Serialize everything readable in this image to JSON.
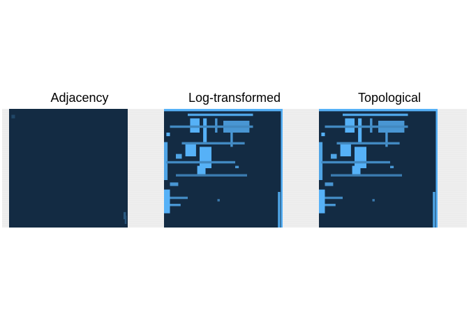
{
  "chart_data": [
    {
      "type": "heatmap",
      "title": "Adjacency",
      "low_color": "#132B43",
      "high_color": "#56B1F7",
      "grid": true,
      "legend": "none",
      "highlights": [
        {
          "r0": 0.87,
          "r1": 0.93,
          "c0": 0.965,
          "c1": 0.985,
          "v": 0.35
        },
        {
          "r0": 0.9,
          "r1": 0.97,
          "c0": 0.975,
          "c1": 0.99,
          "v": 0.3
        },
        {
          "r0": 0.05,
          "r1": 0.08,
          "c0": 0.02,
          "c1": 0.05,
          "v": 0.2
        }
      ]
    },
    {
      "type": "heatmap",
      "title": "Log-transformed",
      "low_color": "#132B43",
      "high_color": "#56B1F7",
      "grid": true,
      "legend": "none",
      "highlights": [
        {
          "r0": 0.0,
          "r1": 0.02,
          "c0": 0.0,
          "c1": 1.0,
          "v": 1
        },
        {
          "r0": 0.0,
          "r1": 1.0,
          "c0": 0.985,
          "c1": 1.0,
          "v": 1
        },
        {
          "r0": 0.04,
          "r1": 0.06,
          "c0": 0.2,
          "c1": 0.75,
          "v": 0.9
        },
        {
          "r0": 0.08,
          "r1": 0.2,
          "c0": 0.22,
          "c1": 0.3,
          "v": 1
        },
        {
          "r0": 0.08,
          "r1": 0.28,
          "c0": 0.33,
          "c1": 0.36,
          "v": 1
        },
        {
          "r0": 0.08,
          "r1": 0.2,
          "c0": 0.43,
          "c1": 0.45,
          "v": 0.8
        },
        {
          "r0": 0.1,
          "r1": 0.2,
          "c0": 0.5,
          "c1": 0.72,
          "v": 0.8
        },
        {
          "r0": 0.14,
          "r1": 0.16,
          "c0": 0.05,
          "c1": 0.75,
          "v": 0.7
        },
        {
          "r0": 0.2,
          "r1": 0.23,
          "c0": 0.02,
          "c1": 0.05,
          "v": 1
        },
        {
          "r0": 0.18,
          "r1": 0.32,
          "c0": 0.56,
          "c1": 0.58,
          "v": 0.8
        },
        {
          "r0": 0.28,
          "r1": 0.3,
          "c0": 0.15,
          "c1": 0.68,
          "v": 0.7
        },
        {
          "r0": 0.28,
          "r1": 0.6,
          "c0": 0.0,
          "c1": 0.03,
          "v": 0.9
        },
        {
          "r0": 0.3,
          "r1": 0.4,
          "c0": 0.18,
          "c1": 0.27,
          "v": 1
        },
        {
          "r0": 0.32,
          "r1": 0.5,
          "c0": 0.3,
          "c1": 0.4,
          "v": 1
        },
        {
          "r0": 0.38,
          "r1": 0.42,
          "c0": 0.1,
          "c1": 0.15,
          "v": 0.9
        },
        {
          "r0": 0.44,
          "r1": 0.46,
          "c0": 0.02,
          "c1": 0.6,
          "v": 0.7
        },
        {
          "r0": 0.48,
          "r1": 0.55,
          "c0": 0.28,
          "c1": 0.35,
          "v": 1
        },
        {
          "r0": 0.48,
          "r1": 0.5,
          "c0": 0.6,
          "c1": 0.63,
          "v": 0.8
        },
        {
          "r0": 0.55,
          "r1": 0.57,
          "c0": 0.1,
          "c1": 0.7,
          "v": 0.6
        },
        {
          "r0": 0.62,
          "r1": 0.65,
          "c0": 0.05,
          "c1": 0.12,
          "v": 0.8
        },
        {
          "r0": 0.68,
          "r1": 0.88,
          "c0": 0.0,
          "c1": 0.05,
          "v": 1
        },
        {
          "r0": 0.74,
          "r1": 0.76,
          "c0": 0.05,
          "c1": 0.2,
          "v": 0.7
        },
        {
          "r0": 0.76,
          "r1": 0.78,
          "c0": 0.45,
          "c1": 0.47,
          "v": 0.6
        },
        {
          "r0": 0.8,
          "r1": 0.82,
          "c0": 0.05,
          "c1": 0.14,
          "v": 0.8
        },
        {
          "r0": 0.7,
          "r1": 1.0,
          "c0": 0.96,
          "c1": 0.98,
          "v": 0.9
        }
      ]
    },
    {
      "type": "heatmap",
      "title": "Topological",
      "low_color": "#132B43",
      "high_color": "#56B1F7",
      "grid": true,
      "legend": "none",
      "highlights": [
        {
          "r0": 0.0,
          "r1": 0.02,
          "c0": 0.0,
          "c1": 1.0,
          "v": 1
        },
        {
          "r0": 0.0,
          "r1": 1.0,
          "c0": 0.985,
          "c1": 1.0,
          "v": 1
        },
        {
          "r0": 0.04,
          "r1": 0.06,
          "c0": 0.2,
          "c1": 0.75,
          "v": 0.9
        },
        {
          "r0": 0.08,
          "r1": 0.2,
          "c0": 0.22,
          "c1": 0.3,
          "v": 1
        },
        {
          "r0": 0.08,
          "r1": 0.28,
          "c0": 0.33,
          "c1": 0.36,
          "v": 1
        },
        {
          "r0": 0.08,
          "r1": 0.2,
          "c0": 0.43,
          "c1": 0.45,
          "v": 0.8
        },
        {
          "r0": 0.1,
          "r1": 0.2,
          "c0": 0.5,
          "c1": 0.72,
          "v": 0.8
        },
        {
          "r0": 0.14,
          "r1": 0.16,
          "c0": 0.05,
          "c1": 0.75,
          "v": 0.7
        },
        {
          "r0": 0.2,
          "r1": 0.23,
          "c0": 0.02,
          "c1": 0.05,
          "v": 1
        },
        {
          "r0": 0.18,
          "r1": 0.32,
          "c0": 0.56,
          "c1": 0.58,
          "v": 0.8
        },
        {
          "r0": 0.28,
          "r1": 0.3,
          "c0": 0.15,
          "c1": 0.68,
          "v": 0.7
        },
        {
          "r0": 0.28,
          "r1": 0.6,
          "c0": 0.0,
          "c1": 0.03,
          "v": 0.9
        },
        {
          "r0": 0.3,
          "r1": 0.4,
          "c0": 0.18,
          "c1": 0.27,
          "v": 1
        },
        {
          "r0": 0.32,
          "r1": 0.5,
          "c0": 0.3,
          "c1": 0.4,
          "v": 1
        },
        {
          "r0": 0.38,
          "r1": 0.42,
          "c0": 0.1,
          "c1": 0.15,
          "v": 0.9
        },
        {
          "r0": 0.44,
          "r1": 0.46,
          "c0": 0.02,
          "c1": 0.6,
          "v": 0.7
        },
        {
          "r0": 0.48,
          "r1": 0.55,
          "c0": 0.28,
          "c1": 0.35,
          "v": 1
        },
        {
          "r0": 0.48,
          "r1": 0.5,
          "c0": 0.6,
          "c1": 0.63,
          "v": 0.8
        },
        {
          "r0": 0.55,
          "r1": 0.57,
          "c0": 0.1,
          "c1": 0.7,
          "v": 0.6
        },
        {
          "r0": 0.62,
          "r1": 0.65,
          "c0": 0.05,
          "c1": 0.12,
          "v": 0.8
        },
        {
          "r0": 0.68,
          "r1": 0.88,
          "c0": 0.0,
          "c1": 0.05,
          "v": 1
        },
        {
          "r0": 0.74,
          "r1": 0.76,
          "c0": 0.05,
          "c1": 0.2,
          "v": 0.7
        },
        {
          "r0": 0.76,
          "r1": 0.78,
          "c0": 0.45,
          "c1": 0.47,
          "v": 0.6
        },
        {
          "r0": 0.8,
          "r1": 0.82,
          "c0": 0.05,
          "c1": 0.14,
          "v": 0.8
        },
        {
          "r0": 0.7,
          "r1": 1.0,
          "c0": 0.96,
          "c1": 0.98,
          "v": 0.9
        }
      ]
    }
  ]
}
